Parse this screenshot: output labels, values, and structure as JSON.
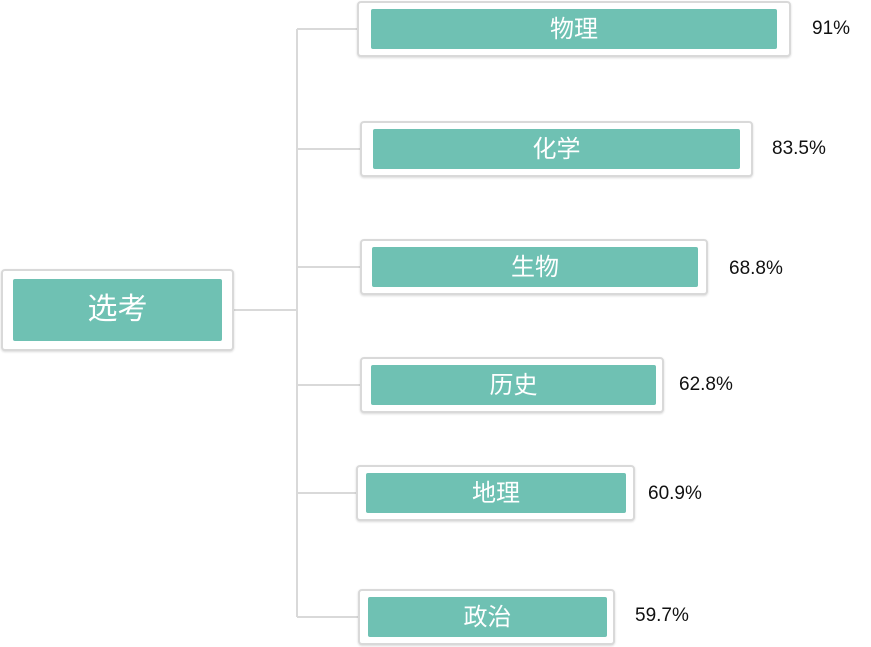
{
  "root": {
    "label": "选考"
  },
  "subjects": [
    {
      "label": "物理",
      "percent": "91%"
    },
    {
      "label": "化学",
      "percent": "83.5%"
    },
    {
      "label": "生物",
      "percent": "68.8%"
    },
    {
      "label": "历史",
      "percent": "62.8%"
    },
    {
      "label": "地理",
      "percent": "60.9%"
    },
    {
      "label": "政治",
      "percent": "59.7%"
    }
  ],
  "colors": {
    "bar": "#6fc1b3",
    "border": "#d9d9d9",
    "connector": "#d9d9d9"
  }
}
